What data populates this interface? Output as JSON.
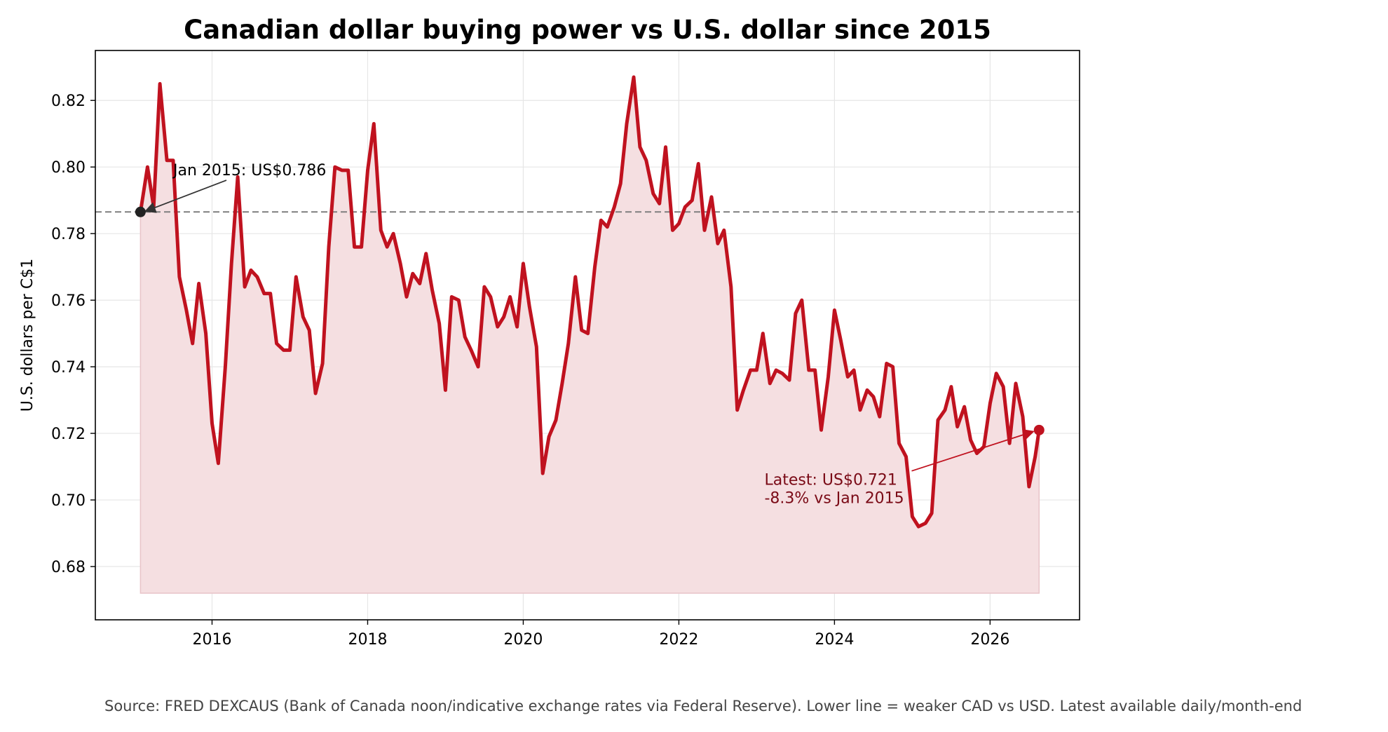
{
  "chart_data": {
    "type": "line",
    "title": "Canadian dollar buying power vs U.S. dollar since 2015",
    "xlabel": "",
    "ylabel": "U.S. dollars per C$1",
    "xlim": [
      2014.5,
      2027.15
    ],
    "ylim": [
      0.664,
      0.835
    ],
    "x_ticks": [
      2016,
      2018,
      2020,
      2022,
      2024,
      2026
    ],
    "x_tick_labels": [
      "2016",
      "2018",
      "2020",
      "2022",
      "2024",
      "2026"
    ],
    "y_ticks": [
      0.68,
      0.7,
      0.72,
      0.74,
      0.76,
      0.78,
      0.8,
      0.82
    ],
    "y_tick_labels": [
      "0.68",
      "0.70",
      "0.72",
      "0.74",
      "0.76",
      "0.78",
      "0.80",
      "0.82"
    ],
    "grid": true,
    "fill_baseline": 0.672,
    "reference_line": {
      "y": 0.7865
    },
    "line_color": "#c0121f",
    "fill_color": "#f5dfe1",
    "reference_color": "#7f7f7f",
    "series": [
      {
        "points": [
          [
            2015.08,
            0.7865
          ],
          [
            2015.17,
            0.8
          ],
          [
            2015.25,
            0.788
          ],
          [
            2015.33,
            0.825
          ],
          [
            2015.42,
            0.802
          ],
          [
            2015.5,
            0.802
          ],
          [
            2015.58,
            0.767
          ],
          [
            2015.67,
            0.757
          ],
          [
            2015.75,
            0.747
          ],
          [
            2015.83,
            0.765
          ],
          [
            2015.92,
            0.75
          ],
          [
            2016.0,
            0.723
          ],
          [
            2016.08,
            0.711
          ],
          [
            2016.17,
            0.74
          ],
          [
            2016.25,
            0.771
          ],
          [
            2016.33,
            0.797
          ],
          [
            2016.42,
            0.764
          ],
          [
            2016.5,
            0.769
          ],
          [
            2016.58,
            0.767
          ],
          [
            2016.67,
            0.762
          ],
          [
            2016.75,
            0.762
          ],
          [
            2016.83,
            0.747
          ],
          [
            2016.92,
            0.745
          ],
          [
            2017.0,
            0.745
          ],
          [
            2017.08,
            0.767
          ],
          [
            2017.17,
            0.755
          ],
          [
            2017.25,
            0.751
          ],
          [
            2017.33,
            0.732
          ],
          [
            2017.42,
            0.741
          ],
          [
            2017.5,
            0.776
          ],
          [
            2017.58,
            0.8
          ],
          [
            2017.67,
            0.799
          ],
          [
            2017.75,
            0.799
          ],
          [
            2017.83,
            0.776
          ],
          [
            2017.92,
            0.776
          ],
          [
            2018.0,
            0.799
          ],
          [
            2018.08,
            0.813
          ],
          [
            2018.17,
            0.781
          ],
          [
            2018.25,
            0.776
          ],
          [
            2018.33,
            0.78
          ],
          [
            2018.42,
            0.771
          ],
          [
            2018.5,
            0.761
          ],
          [
            2018.58,
            0.768
          ],
          [
            2018.67,
            0.765
          ],
          [
            2018.75,
            0.774
          ],
          [
            2018.83,
            0.763
          ],
          [
            2018.92,
            0.753
          ],
          [
            2019.0,
            0.733
          ],
          [
            2019.08,
            0.761
          ],
          [
            2019.17,
            0.76
          ],
          [
            2019.25,
            0.749
          ],
          [
            2019.33,
            0.745
          ],
          [
            2019.42,
            0.74
          ],
          [
            2019.5,
            0.764
          ],
          [
            2019.58,
            0.761
          ],
          [
            2019.67,
            0.752
          ],
          [
            2019.75,
            0.755
          ],
          [
            2019.83,
            0.761
          ],
          [
            2019.92,
            0.752
          ],
          [
            2020.0,
            0.771
          ],
          [
            2020.08,
            0.758
          ],
          [
            2020.17,
            0.746
          ],
          [
            2020.25,
            0.708
          ],
          [
            2020.33,
            0.719
          ],
          [
            2020.42,
            0.724
          ],
          [
            2020.5,
            0.735
          ],
          [
            2020.58,
            0.747
          ],
          [
            2020.67,
            0.767
          ],
          [
            2020.75,
            0.751
          ],
          [
            2020.83,
            0.75
          ],
          [
            2020.92,
            0.77
          ],
          [
            2021.0,
            0.784
          ],
          [
            2021.08,
            0.782
          ],
          [
            2021.17,
            0.788
          ],
          [
            2021.25,
            0.795
          ],
          [
            2021.33,
            0.813
          ],
          [
            2021.42,
            0.827
          ],
          [
            2021.5,
            0.806
          ],
          [
            2021.58,
            0.802
          ],
          [
            2021.67,
            0.792
          ],
          [
            2021.75,
            0.789
          ],
          [
            2021.83,
            0.806
          ],
          [
            2021.92,
            0.781
          ],
          [
            2022.0,
            0.783
          ],
          [
            2022.08,
            0.788
          ],
          [
            2022.17,
            0.79
          ],
          [
            2022.25,
            0.801
          ],
          [
            2022.33,
            0.781
          ],
          [
            2022.42,
            0.791
          ],
          [
            2022.5,
            0.777
          ],
          [
            2022.58,
            0.781
          ],
          [
            2022.67,
            0.764
          ],
          [
            2022.75,
            0.727
          ],
          [
            2022.83,
            0.733
          ],
          [
            2022.92,
            0.739
          ],
          [
            2023.0,
            0.739
          ],
          [
            2023.08,
            0.75
          ],
          [
            2023.17,
            0.735
          ],
          [
            2023.25,
            0.739
          ],
          [
            2023.33,
            0.738
          ],
          [
            2023.42,
            0.736
          ],
          [
            2023.5,
            0.756
          ],
          [
            2023.58,
            0.76
          ],
          [
            2023.67,
            0.739
          ],
          [
            2023.75,
            0.739
          ],
          [
            2023.83,
            0.721
          ],
          [
            2023.92,
            0.737
          ],
          [
            2024.0,
            0.757
          ],
          [
            2024.08,
            0.748
          ],
          [
            2024.17,
            0.737
          ],
          [
            2024.25,
            0.739
          ],
          [
            2024.33,
            0.727
          ],
          [
            2024.42,
            0.733
          ],
          [
            2024.5,
            0.731
          ],
          [
            2024.58,
            0.725
          ],
          [
            2024.67,
            0.741
          ],
          [
            2024.75,
            0.74
          ],
          [
            2024.83,
            0.717
          ],
          [
            2024.92,
            0.713
          ],
          [
            2025.0,
            0.695
          ],
          [
            2025.08,
            0.692
          ],
          [
            2025.17,
            0.693
          ],
          [
            2025.25,
            0.696
          ],
          [
            2025.33,
            0.724
          ],
          [
            2025.42,
            0.727
          ],
          [
            2025.5,
            0.734
          ],
          [
            2025.58,
            0.722
          ],
          [
            2025.67,
            0.728
          ],
          [
            2025.75,
            0.718
          ],
          [
            2025.83,
            0.714
          ],
          [
            2025.92,
            0.716
          ],
          [
            2026.0,
            0.729
          ],
          [
            2026.08,
            0.738
          ],
          [
            2026.17,
            0.734
          ],
          [
            2026.25,
            0.717
          ],
          [
            2026.33,
            0.735
          ],
          [
            2026.42,
            0.725
          ],
          [
            2026.5,
            0.704
          ],
          [
            2026.58,
            0.713
          ],
          [
            2026.63,
            0.721
          ]
        ]
      }
    ],
    "annotations": [
      {
        "text": "Jan 2015: US$0.786",
        "point": [
          2015.08,
          0.7865
        ],
        "text_pos": [
          2015.5,
          0.7975
        ],
        "color": "#000000",
        "arrow_color": "#333333",
        "marker_color": "#222222"
      },
      {
        "lines": [
          "Latest: US$0.721",
          "-8.3% vs Jan 2015"
        ],
        "point": [
          2026.63,
          0.721
        ],
        "text_pos": [
          2023.1,
          0.7045
        ],
        "color": "#7a0a16",
        "arrow_color": "#c0121f",
        "marker_color": "#c0121f"
      }
    ]
  },
  "source_note": "Source: FRED DEXCAUS (Bank of Canada noon/indicative exchange rates via Federal Reserve). Lower line = weaker CAD vs USD. Latest available daily/month-end"
}
